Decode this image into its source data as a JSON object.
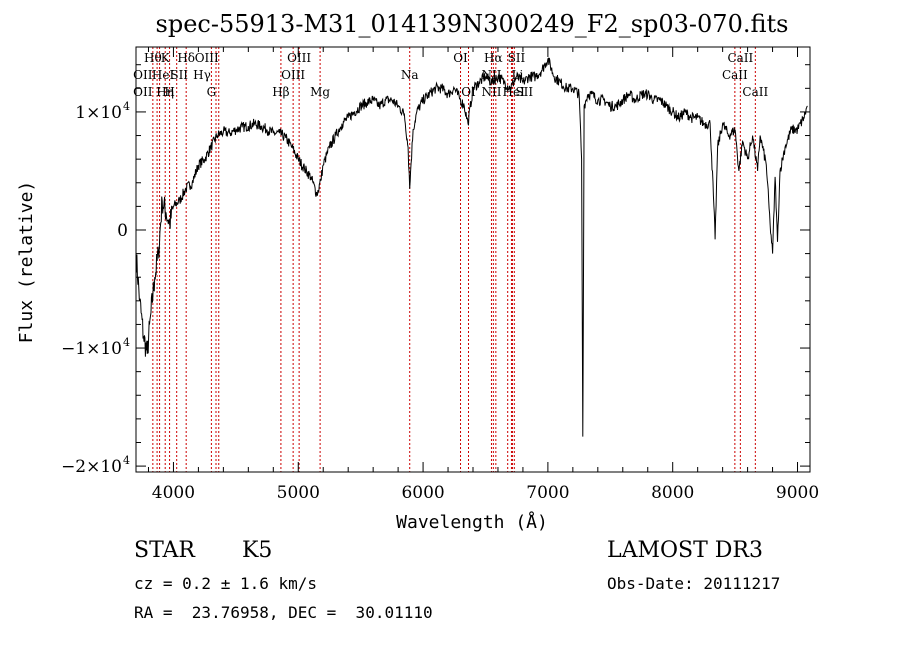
{
  "chart_data": {
    "type": "line",
    "title": "spec-55913-M31_014139N300249_F2_sp03-070.fits",
    "xlabel": "Wavelength (Å)",
    "ylabel": "Flux (relative)",
    "xlim": [
      3700,
      9100
    ],
    "ylim": [
      -20500,
      15500
    ],
    "xticks": [
      4000,
      5000,
      6000,
      7000,
      8000,
      9000
    ],
    "yticks": [
      {
        "value": 10000,
        "mantissa": "1×10",
        "exp": "4"
      },
      {
        "value": 0,
        "mantissa": "0",
        "exp": ""
      },
      {
        "value": -10000,
        "mantissa": "−1×10",
        "exp": "4"
      },
      {
        "value": -20000,
        "mantissa": "−2×10",
        "exp": "4"
      }
    ],
    "grid": false,
    "spectrum": {
      "x": [
        3700,
        3730,
        3760,
        3790,
        3820,
        3850,
        3880,
        3910,
        3940,
        3970,
        4000,
        4050,
        4100,
        4150,
        4200,
        4250,
        4300,
        4350,
        4400,
        4450,
        4500,
        4550,
        4600,
        4650,
        4700,
        4750,
        4800,
        4850,
        4900,
        4950,
        5000,
        5050,
        5100,
        5150,
        5180,
        5200,
        5250,
        5300,
        5350,
        5400,
        5450,
        5500,
        5550,
        5600,
        5650,
        5700,
        5750,
        5800,
        5850,
        5880,
        5893,
        5900,
        5920,
        5950,
        6000,
        6050,
        6100,
        6150,
        6200,
        6250,
        6300,
        6330,
        6360,
        6400,
        6450,
        6500,
        6550,
        6600,
        6650,
        6700,
        6750,
        6800,
        6850,
        6900,
        6950,
        7000,
        7050,
        7100,
        7150,
        7200,
        7250,
        7270,
        7280,
        7290,
        7320,
        7350,
        7400,
        7450,
        7500,
        7550,
        7600,
        7650,
        7700,
        7750,
        7800,
        7850,
        7900,
        7950,
        8000,
        8050,
        8100,
        8150,
        8200,
        8250,
        8300,
        8330,
        8340,
        8360,
        8400,
        8450,
        8500,
        8530,
        8560,
        8600,
        8640,
        8680,
        8700,
        8750,
        8780,
        8800,
        8820,
        8840,
        8860,
        8900,
        8950,
        9000,
        9050,
        9080
      ],
      "y": [
        -2000,
        -6000,
        -9000,
        -10500,
        -7000,
        -4000,
        -2000,
        2500,
        1500,
        500,
        2000,
        2500,
        3500,
        4000,
        5500,
        6000,
        7000,
        8000,
        8300,
        8200,
        8500,
        8700,
        8800,
        9000,
        8800,
        8500,
        8200,
        8200,
        7800,
        7000,
        6000,
        5200,
        4500,
        3000,
        4200,
        5500,
        7000,
        8000,
        9000,
        9500,
        10000,
        10500,
        10800,
        11000,
        10500,
        11000,
        11000,
        10500,
        9800,
        7000,
        3500,
        5000,
        8500,
        10000,
        11000,
        11500,
        12000,
        12000,
        11500,
        12000,
        11000,
        10500,
        9000,
        12000,
        12500,
        13000,
        12500,
        13000,
        12500,
        12000,
        13000,
        12500,
        13000,
        13000,
        13500,
        14500,
        13000,
        12500,
        12000,
        12000,
        11500,
        6000,
        -17500,
        10500,
        11500,
        11500,
        11000,
        11000,
        10500,
        10500,
        11000,
        11500,
        11000,
        11500,
        11500,
        11000,
        11000,
        10500,
        10000,
        9500,
        10000,
        9500,
        9500,
        9000,
        9000,
        2000,
        -800,
        7000,
        9000,
        8000,
        8500,
        5000,
        7500,
        6000,
        8000,
        5000,
        8000,
        5500,
        500,
        -2000,
        4500,
        -1000,
        5000,
        7000,
        8500,
        8500,
        9500,
        10500
      ]
    },
    "lines": [
      {
        "x": 3835,
        "labels": [
          {
            "text": "Hθ",
            "row": 0,
            "dx": 0
          },
          {
            "text": "OII",
            "row": 1,
            "dx": -10
          },
          {
            "text": "OII",
            "row": 2,
            "dx": -10
          }
        ]
      },
      {
        "x": 3869,
        "labels": [
          {
            "text": "HeI",
            "row": 1,
            "dx": 6
          },
          {
            "text": "Hη",
            "row": 2,
            "dx": 8
          }
        ]
      },
      {
        "x": 3889,
        "labels": []
      },
      {
        "x": 3934,
        "labels": [
          {
            "text": "K",
            "row": 0,
            "dx": 0
          },
          {
            "text": "SII",
            "row": 1,
            "dx": 14
          }
        ]
      },
      {
        "x": 3969,
        "labels": [
          {
            "text": "H",
            "row": 2,
            "dx": 0
          }
        ]
      },
      {
        "x": 4026,
        "labels": []
      },
      {
        "x": 4102,
        "labels": [
          {
            "text": "Hδ",
            "row": 0,
            "dx": 0
          }
        ]
      },
      {
        "x": 4304,
        "labels": [
          {
            "text": "G",
            "row": 2,
            "dx": 0
          }
        ]
      },
      {
        "x": 4341,
        "labels": [
          {
            "text": "Hγ",
            "row": 1,
            "dx": -14
          }
        ]
      },
      {
        "x": 4363,
        "labels": [
          {
            "text": "OIII",
            "row": 0,
            "dx": -12
          }
        ]
      },
      {
        "x": 4861,
        "labels": [
          {
            "text": "Hβ",
            "row": 2,
            "dx": 0
          }
        ]
      },
      {
        "x": 4959,
        "labels": [
          {
            "text": "OIII",
            "row": 1,
            "dx": 0
          }
        ]
      },
      {
        "x": 5007,
        "labels": [
          {
            "text": "OIII",
            "row": 0,
            "dx": 0
          }
        ]
      },
      {
        "x": 5175,
        "labels": [
          {
            "text": "Mg",
            "row": 2,
            "dx": 0
          }
        ]
      },
      {
        "x": 5893,
        "labels": [
          {
            "text": "Na",
            "row": 1,
            "dx": 0
          }
        ]
      },
      {
        "x": 6300,
        "labels": [
          {
            "text": "OI",
            "row": 0,
            "dx": 0
          }
        ]
      },
      {
        "x": 6364,
        "labels": [
          {
            "text": "OI",
            "row": 2,
            "dx": 0
          }
        ]
      },
      {
        "x": 6548,
        "labels": [
          {
            "text": "NII",
            "row": 1,
            "dx": 0
          },
          {
            "text": "NII",
            "row": 2,
            "dx": 0
          }
        ]
      },
      {
        "x": 6563,
        "labels": [
          {
            "text": "Hα",
            "row": 0,
            "dx": 0
          }
        ]
      },
      {
        "x": 6583,
        "labels": []
      },
      {
        "x": 6678,
        "labels": [
          {
            "text": "HeI",
            "row": 2,
            "dx": 6
          }
        ]
      },
      {
        "x": 6708,
        "labels": [
          {
            "text": "Li",
            "row": 1,
            "dx": 6
          }
        ]
      },
      {
        "x": 6716,
        "labels": [
          {
            "text": "SII",
            "row": 0,
            "dx": 4
          }
        ]
      },
      {
        "x": 6731,
        "labels": [
          {
            "text": "SII",
            "row": 2,
            "dx": 10
          }
        ]
      },
      {
        "x": 8498,
        "labels": [
          {
            "text": "CaII",
            "row": 1,
            "dx": 0
          }
        ]
      },
      {
        "x": 8542,
        "labels": [
          {
            "text": "CaII",
            "row": 0,
            "dx": 0
          }
        ]
      },
      {
        "x": 8662,
        "labels": [
          {
            "text": "CaII",
            "row": 2,
            "dx": 0
          }
        ]
      }
    ]
  },
  "info": {
    "class": "STAR",
    "subclass": "K5",
    "survey": "LAMOST DR3",
    "cz": "cz = 0.2 ± 1.6 km/s",
    "obs_date": "Obs-Date: 20111217",
    "coords": "RA =  23.76958, DEC =  30.01110"
  },
  "colors": {
    "spectrum": "#000000",
    "lines": "#cc0000",
    "axes": "#000000"
  }
}
